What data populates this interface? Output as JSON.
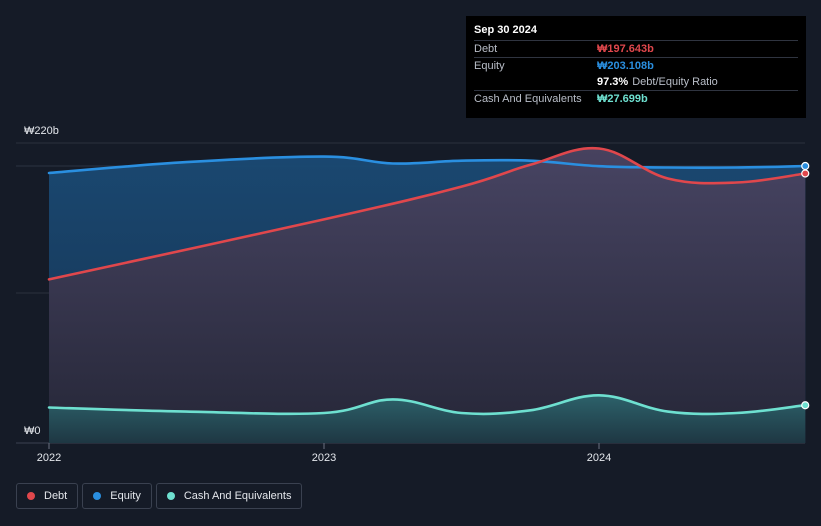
{
  "chart_data": {
    "type": "area",
    "y_axis": {
      "top_label": "₩220b",
      "bottom_label": "₩0",
      "ylim": [
        0,
        220
      ]
    },
    "x_ticks": [
      {
        "label": "2022",
        "x": 2022.0
      },
      {
        "label": "2023",
        "x": 2023.0
      },
      {
        "label": "2024",
        "x": 2024.0
      }
    ],
    "series": [
      {
        "name": "Debt",
        "color": "#e0474c",
        "points": [
          [
            2022.0,
            120
          ],
          [
            2023.0,
            164
          ],
          [
            2023.5,
            188
          ],
          [
            2023.75,
            204
          ],
          [
            2024.0,
            216
          ],
          [
            2024.25,
            194
          ],
          [
            2024.5,
            191
          ],
          [
            2024.75,
            197.643
          ]
        ]
      },
      {
        "name": "Equity",
        "color": "#2a8fe0",
        "points": [
          [
            2022.0,
            198
          ],
          [
            2022.5,
            206
          ],
          [
            2023.0,
            210
          ],
          [
            2023.25,
            205
          ],
          [
            2023.5,
            207
          ],
          [
            2023.75,
            207
          ],
          [
            2024.0,
            203
          ],
          [
            2024.25,
            202
          ],
          [
            2024.5,
            202
          ],
          [
            2024.75,
            203.108
          ]
        ]
      },
      {
        "name": "Cash And Equivalents",
        "color": "#6ee0d0",
        "points": [
          [
            2022.0,
            26
          ],
          [
            2022.5,
            23
          ],
          [
            2023.0,
            22
          ],
          [
            2023.25,
            32
          ],
          [
            2023.5,
            22
          ],
          [
            2023.75,
            24
          ],
          [
            2024.0,
            35
          ],
          [
            2024.25,
            23
          ],
          [
            2024.5,
            22
          ],
          [
            2024.75,
            27.699
          ]
        ]
      }
    ]
  },
  "tooltip": {
    "date": "Sep 30 2024",
    "rows": [
      {
        "label": "Debt",
        "value": "₩197.643b",
        "color": "#e0474c"
      },
      {
        "label": "Equity",
        "value": "₩203.108b",
        "color": "#2a8fe0"
      }
    ],
    "ratio_value": "97.3%",
    "ratio_label": "Debt/Equity Ratio",
    "cash": {
      "label": "Cash And Equivalents",
      "value": "₩27.699b",
      "color": "#6ee0d0"
    }
  },
  "legend": [
    {
      "label": "Debt",
      "color": "#e0474c"
    },
    {
      "label": "Equity",
      "color": "#2a8fe0"
    },
    {
      "label": "Cash And Equivalents",
      "color": "#6ee0d0"
    }
  ]
}
